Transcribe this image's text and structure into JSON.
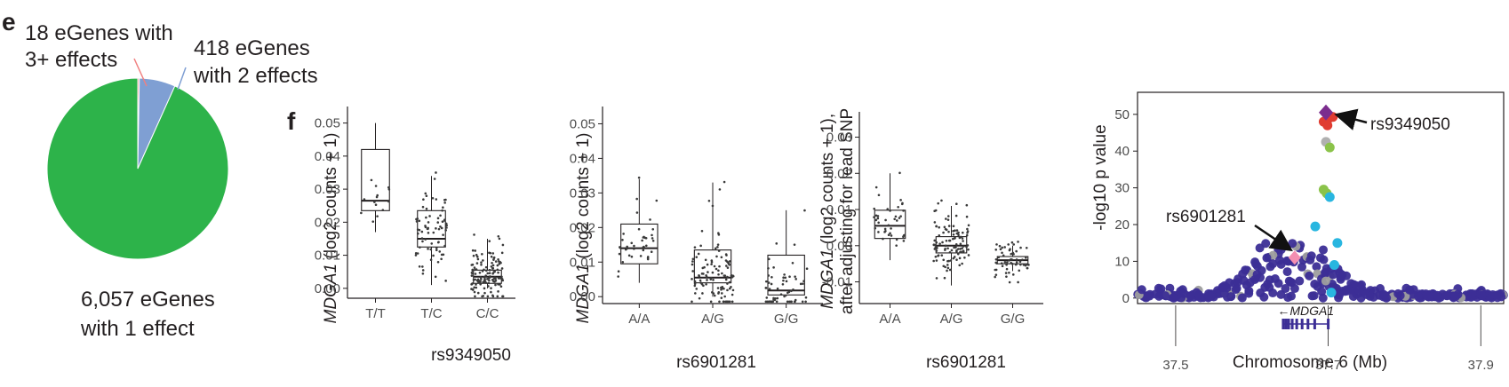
{
  "panels": {
    "e": "e",
    "f": "f"
  },
  "chart_data": [
    {
      "type": "pie",
      "panel": "e",
      "values": [
        6057,
        418,
        18
      ],
      "colors": [
        "#2db34a",
        "#7f9fd3",
        "#f08080"
      ],
      "labels": {
        "one": {
          "line1": "6,057 eGenes",
          "line2": "with 1 effect"
        },
        "two": {
          "line1": "418 eGenes",
          "line2": "with 2 effects"
        },
        "three": {
          "line1": "18 eGenes with",
          "line2": "3+ effects"
        }
      }
    },
    {
      "type": "box",
      "panel": "f",
      "xlabel": "rs9349050",
      "ylabel_italic": "MDGA1",
      "ylabel_rest": " (log2 counts + 1)",
      "categories": [
        "T/T",
        "T/C",
        "C/C"
      ],
      "ylim": [
        -0.003,
        0.055
      ],
      "yticks": [
        0.0,
        0.01,
        0.02,
        0.03,
        0.04,
        0.05
      ],
      "ytick_labels": [
        "0.00",
        "0.01",
        "0.02",
        "0.03",
        "0.04",
        "0.05"
      ],
      "boxes": [
        {
          "q1": 0.0235,
          "median": 0.0265,
          "q3": 0.042,
          "low": 0.017,
          "high": 0.05
        },
        {
          "q1": 0.0125,
          "median": 0.015,
          "q3": 0.0235,
          "low": 0.001,
          "high": 0.034
        },
        {
          "q1": 0.0015,
          "median": 0.0035,
          "q3": 0.0055,
          "low": 0.0,
          "high": 0.015
        }
      ],
      "n_points": [
        14,
        75,
        130
      ],
      "spread": [
        0.007,
        0.007,
        0.0045
      ]
    },
    {
      "type": "box",
      "panel": "f",
      "xlabel": "rs6901281",
      "ylabel_italic": "MDGA1",
      "ylabel_rest": " (log2 counts + 1)",
      "categories": [
        "A/A",
        "A/G",
        "G/G"
      ],
      "ylim": [
        -0.002,
        0.055
      ],
      "yticks": [
        0.0,
        0.01,
        0.02,
        0.03,
        0.04,
        0.05
      ],
      "ytick_labels": [
        "0.00",
        "0.01",
        "0.02",
        "0.03",
        "0.04",
        "0.05"
      ],
      "boxes": [
        {
          "q1": 0.0095,
          "median": 0.014,
          "q3": 0.021,
          "low": 0.004,
          "high": 0.034
        },
        {
          "q1": 0.004,
          "median": 0.0055,
          "q3": 0.0135,
          "low": 0.0,
          "high": 0.033
        },
        {
          "q1": 0.0005,
          "median": 0.0018,
          "q3": 0.012,
          "low": 0.0,
          "high": 0.025
        }
      ],
      "n_points": [
        40,
        110,
        60
      ],
      "spread": [
        0.006,
        0.007,
        0.006
      ]
    },
    {
      "type": "box",
      "panel": "f",
      "xlabel": "rs6901281",
      "ylabel_italic": "MDGA1",
      "ylabel_rest": " (log2 counts + 1),",
      "ylabel_line2": "after adjusting for lead SNP",
      "categories": [
        "A/A",
        "A/G",
        "G/G"
      ],
      "ylim": [
        -0.016,
        0.037
      ],
      "yticks": [
        -0.01,
        0.0,
        0.01,
        0.02,
        0.03
      ],
      "ytick_labels": [
        "-0.01",
        "0.00",
        "0.01",
        "0.02",
        "0.03"
      ],
      "boxes": [
        {
          "q1": 0.002,
          "median": 0.0055,
          "q3": 0.0098,
          "low": -0.004,
          "high": 0.02
        },
        {
          "q1": -0.002,
          "median": 0.0,
          "q3": 0.0025,
          "low": -0.011,
          "high": 0.011
        },
        {
          "q1": -0.005,
          "median": -0.004,
          "q3": -0.003,
          "low": -0.007,
          "high": 0.0
        }
      ],
      "n_points": [
        40,
        110,
        60
      ],
      "spread": [
        0.005,
        0.005,
        0.0035
      ]
    },
    {
      "type": "scatter",
      "panel": "f",
      "subtype": "locuszoom",
      "xlabel": "Chromosome 6 (Mb)",
      "ylabel": "-log10 p value",
      "xlim": [
        37.45,
        37.93
      ],
      "ylim": [
        -1.5,
        56
      ],
      "xticks": [
        37.5,
        37.7,
        37.9
      ],
      "xtick_labels": [
        "37.5",
        "37.7",
        "37.9"
      ],
      "yticks": [
        0,
        10,
        20,
        30,
        40,
        50
      ],
      "ytick_labels": [
        "0",
        "10",
        "20",
        "30",
        "40",
        "50"
      ],
      "gene": {
        "label": "←MDGA1",
        "start": 37.641,
        "end": 37.7
      },
      "lead_snp": {
        "name": "rs9349050",
        "x": 37.697,
        "y": 50.5,
        "color": "#7b2d8e"
      },
      "second_snp": {
        "name": "rs6901281",
        "x": 37.656,
        "y": 11,
        "color": "#f48fb1"
      },
      "highlighted_points": [
        {
          "x": 37.7,
          "y": 48.8,
          "color": "#e03c31"
        },
        {
          "x": 37.694,
          "y": 48.0,
          "color": "#e03c31"
        },
        {
          "x": 37.706,
          "y": 49.3,
          "color": "#e03c31"
        },
        {
          "x": 37.699,
          "y": 47.0,
          "color": "#e03c31"
        },
        {
          "x": 37.697,
          "y": 42.5,
          "color": "#b0b0b0"
        },
        {
          "x": 37.702,
          "y": 41.0,
          "color": "#8bc34a"
        },
        {
          "x": 37.694,
          "y": 29.5,
          "color": "#8bc34a"
        },
        {
          "x": 37.698,
          "y": 28.5,
          "color": "#8bc34a"
        },
        {
          "x": 37.702,
          "y": 27.5,
          "color": "#29b6e0"
        },
        {
          "x": 37.683,
          "y": 19.5,
          "color": "#29b6e0"
        },
        {
          "x": 37.712,
          "y": 15.0,
          "color": "#29b6e0"
        },
        {
          "x": 37.708,
          "y": 9.0,
          "color": "#29b6e0"
        },
        {
          "x": 37.704,
          "y": 1.5,
          "color": "#29b6e0"
        }
      ],
      "background_color": "#3c2e96",
      "grey_color": "#9e9e9e"
    }
  ],
  "annotations": {
    "lead_label": "rs9349050",
    "second_label": "rs6901281"
  }
}
